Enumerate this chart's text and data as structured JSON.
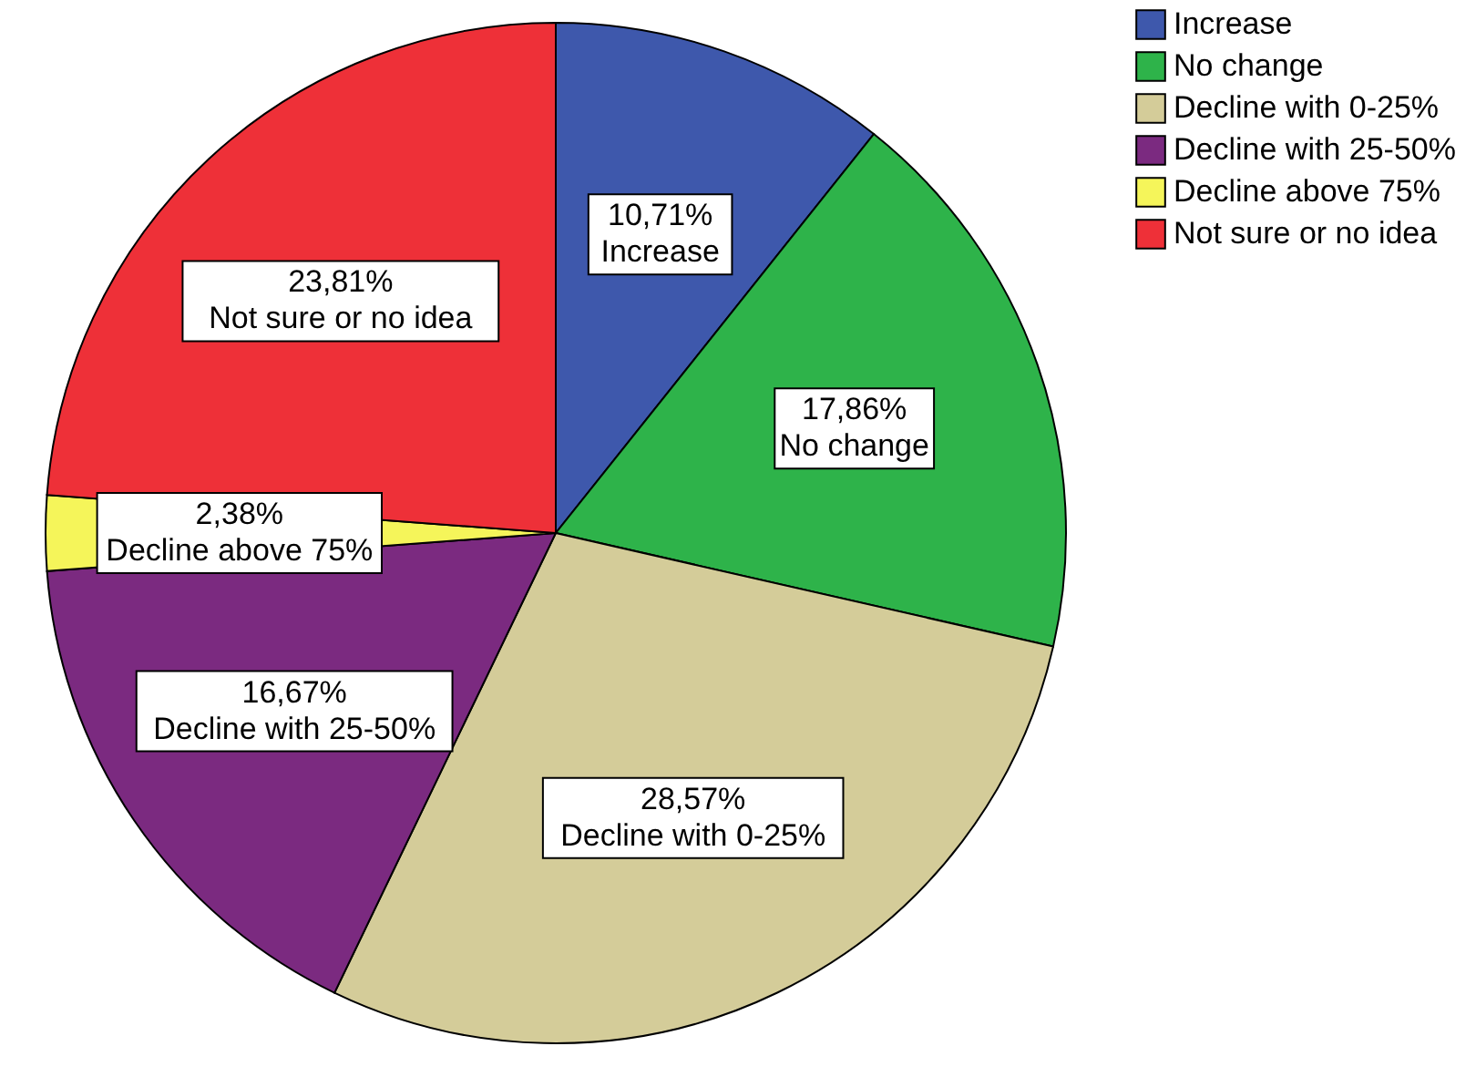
{
  "chart_data": {
    "type": "pie",
    "categories": [
      "Increase",
      "No change",
      "Decline with 0-25%",
      "Decline with 25-50%",
      "Decline above 75%",
      "Not sure or no idea"
    ],
    "values": [
      10.71,
      17.86,
      28.57,
      16.67,
      2.38,
      23.81
    ],
    "value_labels": [
      "10,71%",
      "17,86%",
      "28,57%",
      "16,67%",
      "2,38%",
      "23,81%"
    ],
    "colors": [
      "#3e58ac",
      "#2eb34a",
      "#d4cc99",
      "#7b2a80",
      "#f5f55a",
      "#ee3038"
    ],
    "legend": "top right"
  }
}
